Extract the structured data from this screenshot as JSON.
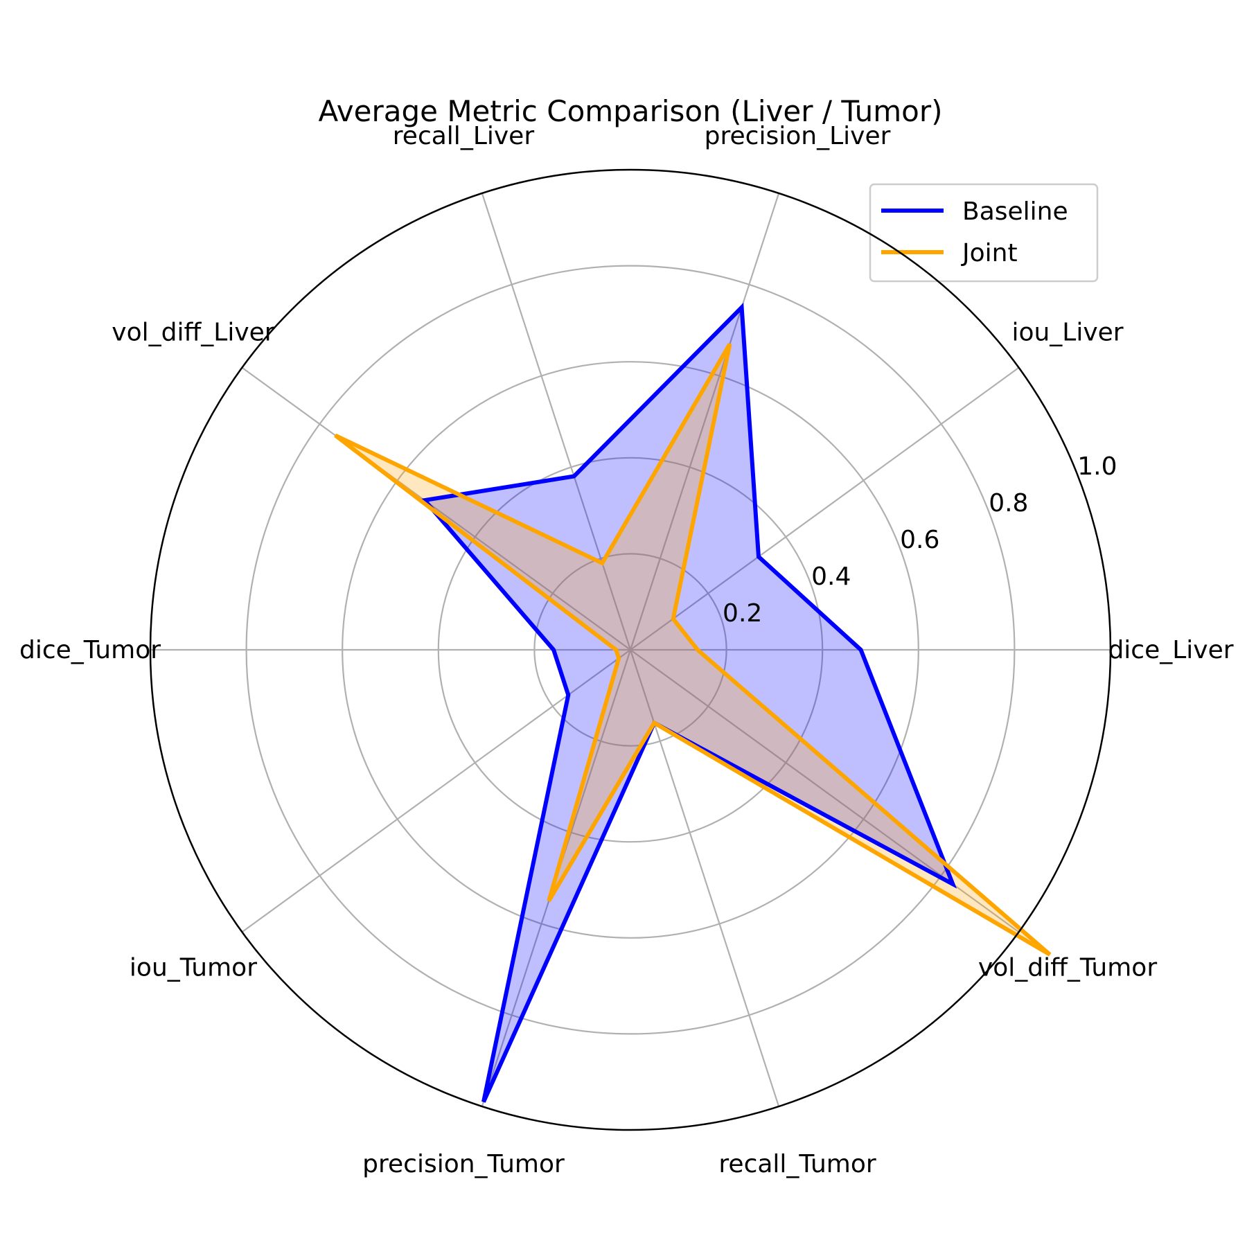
{
  "chart_data": {
    "type": "radar",
    "title": "Average Metric Comparison (Liver / Tumor)",
    "categories": [
      "dice_Liver",
      "iou_Liver",
      "precision_Liver",
      "recall_Liver",
      "vol_diff_Liver",
      "dice_Tumor",
      "iou_Tumor",
      "precision_Tumor",
      "recall_Tumor",
      "vol_diff_Tumor"
    ],
    "rlim": [
      0,
      1.0
    ],
    "rticks": [
      0.2,
      0.4,
      0.6,
      0.8,
      1.0
    ],
    "rtick_labels": [
      "0.2",
      "0.4",
      "0.6",
      "0.8",
      "1.0"
    ],
    "grid": true,
    "legend_position": "top-right",
    "series": [
      {
        "name": "Baseline",
        "color": "#0000ff",
        "fill": "#0000ff",
        "values": [
          0.48,
          0.33,
          0.75,
          0.38,
          0.53,
          0.16,
          0.16,
          0.99,
          0.16,
          0.83
        ]
      },
      {
        "name": "Joint",
        "color": "#ffa500",
        "fill": "#ffa500",
        "values": [
          0.14,
          0.11,
          0.67,
          0.19,
          0.76,
          0.03,
          0.03,
          0.55,
          0.16,
          1.08
        ]
      }
    ]
  }
}
